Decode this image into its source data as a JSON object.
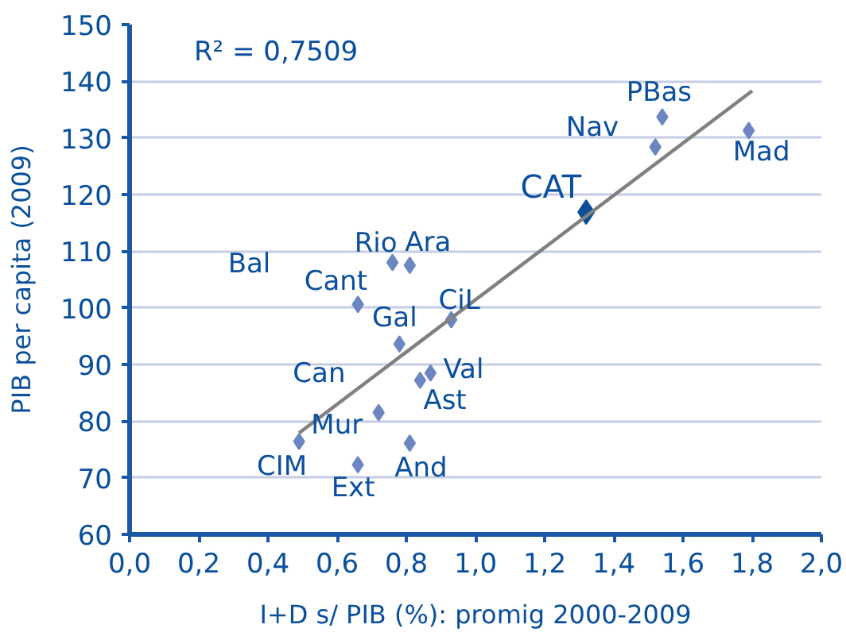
{
  "chart_data": {
    "type": "scatter",
    "xlabel": "I+D s/ PIB (%): promig 2000-2009",
    "ylabel": "PIB per capita (2009)",
    "xlim": [
      0,
      2
    ],
    "xticks": [
      {
        "value": 0,
        "label": "0,0"
      },
      {
        "value": 0.2,
        "label": "0,2"
      },
      {
        "value": 0.4,
        "label": "0,4"
      },
      {
        "value": 0.6,
        "label": "0,6"
      },
      {
        "value": 0.8,
        "label": "0,8"
      },
      {
        "value": 1,
        "label": "1,0"
      },
      {
        "value": 1.2,
        "label": "1,2"
      },
      {
        "value": 1.4,
        "label": "1,4"
      },
      {
        "value": 1.6,
        "label": "1,6"
      },
      {
        "value": 1.8,
        "label": "1,8"
      },
      {
        "value": 2,
        "label": "2,0"
      }
    ],
    "ylim": [
      60,
      150
    ],
    "yticks": [
      60,
      70,
      80,
      90,
      100,
      110,
      120,
      130,
      140,
      150
    ],
    "grid": "y",
    "marker": "diamond",
    "series": [
      {
        "color": "#6c86c2",
        "x": [
          0.49,
          0.66,
          0.72,
          0.81,
          0.78,
          0.66,
          0.84,
          0.87,
          0.93,
          0.76,
          0.81,
          1.52,
          1.54,
          1.79
        ],
        "values": [
          76.4,
          72.3,
          81.5,
          76.1,
          93.6,
          100.6,
          87.2,
          88.5,
          97.9,
          108.0,
          107.5,
          128.4,
          133.7,
          131.3
        ]
      },
      {
        "color": "#0b4d9a",
        "x": [
          1.32
        ],
        "values": [
          116.9
        ]
      },
      {
        "type": "line",
        "color": "#808080",
        "marker": "none",
        "x": [
          0.49,
          1.8
        ],
        "values": [
          77.9,
          138.3
        ]
      }
    ],
    "annotations": [
      "R² = 0,7509",
      "Bal",
      "Can",
      {
        "text": "CIM",
        "x": 0.49,
        "y": 76.4
      },
      {
        "text": "Ext",
        "x": 0.66,
        "y": 72.3
      },
      {
        "text": "Mur",
        "x": 0.72,
        "y": 81.5
      },
      {
        "text": "And",
        "x": 0.81,
        "y": 76.1
      },
      {
        "text": "Gal",
        "x": 0.78,
        "y": 93.6
      },
      {
        "text": "Cant",
        "x": 0.66,
        "y": 100.6
      },
      {
        "text": "Ast",
        "x": 0.84,
        "y": 87.2
      },
      {
        "text": "Val",
        "x": 0.87,
        "y": 88.5
      },
      {
        "text": "CiL",
        "x": 0.93,
        "y": 97.9
      },
      {
        "text": "Rio",
        "x": 0.76,
        "y": 108.0
      },
      {
        "text": "Ara",
        "x": 0.81,
        "y": 107.5
      },
      {
        "text": "Nav",
        "x": 1.52,
        "y": 128.4
      },
      {
        "text": "PBas",
        "x": 1.54,
        "y": 133.7
      },
      {
        "text": "Mad",
        "x": 1.79,
        "y": 131.3
      },
      {
        "text": "CAT",
        "x": 1.32,
        "y": 116.9
      }
    ]
  }
}
